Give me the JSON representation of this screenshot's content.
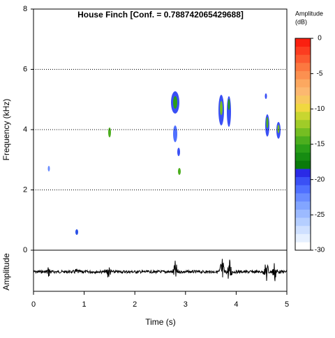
{
  "chart_data": {
    "type": "spectrogram",
    "title": "House Finch [Conf. = 0.788742065429688]",
    "xlabel": "Time (s)",
    "ylabel": "Frequency (kHz)",
    "y2label": "Amplitude",
    "xlim": [
      0,
      5
    ],
    "xticks": [
      0,
      1,
      2,
      3,
      4,
      5
    ],
    "ylim": [
      0,
      8
    ],
    "yticks": [
      0,
      2,
      4,
      6,
      8
    ],
    "grid": true,
    "colorbar": {
      "title": "Amplitude",
      "unit": "(dB)",
      "lim": [
        -30,
        0
      ],
      "ticks": [
        0,
        -5,
        -10,
        -15,
        -20,
        -25,
        -30
      ],
      "colors": [
        "#ffffff",
        "#e6f0ff",
        "#cfe0ff",
        "#b5ceff",
        "#9cbaff",
        "#82a5ff",
        "#6a8cff",
        "#5070ff",
        "#3a50f5",
        "#2a2ae6",
        "#0a7a0a",
        "#168c12",
        "#2a9e18",
        "#4cae1e",
        "#75be22",
        "#a0cc28",
        "#c8d630",
        "#f0d840",
        "#f8c860",
        "#fcb870",
        "#fca860",
        "#fc9050",
        "#fc7840",
        "#fc5a30",
        "#fc3c20",
        "#fa2010"
      ]
    }
  }
}
